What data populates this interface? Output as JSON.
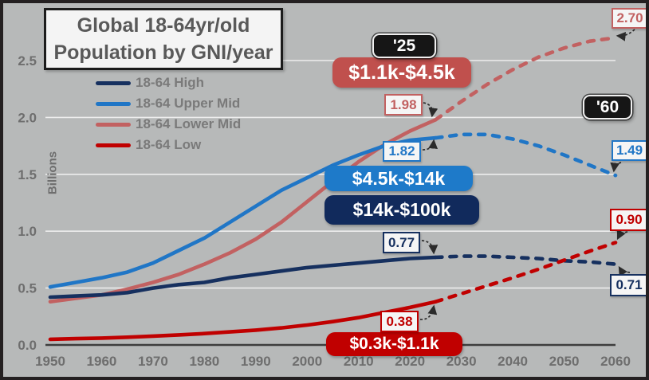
{
  "title": {
    "line1": "Global 18-64yr/old",
    "line2": "Population by GNI/year"
  },
  "y_axis_label": "Billions",
  "badges": {
    "forecast_start": "'25",
    "forecast_end": "'60"
  },
  "chart_data": {
    "type": "line",
    "x_years": [
      1950,
      1955,
      1960,
      1965,
      1970,
      1975,
      1980,
      1985,
      1990,
      1995,
      2000,
      2005,
      2010,
      2015,
      2020,
      2025,
      2030,
      2035,
      2040,
      2045,
      2050,
      2055,
      2060
    ],
    "xtick_labels": [
      "1950",
      "1960",
      "1970",
      "1980",
      "1990",
      "2000",
      "2010",
      "2020",
      "2030",
      "2040",
      "2050",
      "2060"
    ],
    "ytick_labels": [
      "0.0",
      "0.5",
      "1.0",
      "1.5",
      "2.0",
      "2.5"
    ],
    "yticks": [
      0.0,
      0.5,
      1.0,
      1.5,
      2.0,
      2.5
    ],
    "ylim": [
      0,
      2.8
    ],
    "ylabel": "Billions",
    "grid": "horizontal-white",
    "legend_position": "top-left",
    "solid_until_year": 2025,
    "background_color": "#b7b9b9",
    "series": [
      {
        "name": "18-64 High",
        "color": "#16305f",
        "badge_color": "#112a5c",
        "gni_range": "$14k-$100k",
        "label_2025": "0.77",
        "label_2060": "0.71",
        "values": [
          0.42,
          0.43,
          0.44,
          0.46,
          0.5,
          0.53,
          0.55,
          0.59,
          0.62,
          0.65,
          0.68,
          0.7,
          0.72,
          0.74,
          0.76,
          0.77,
          0.78,
          0.78,
          0.77,
          0.76,
          0.74,
          0.73,
          0.71
        ]
      },
      {
        "name": "18-64 Upper Mid",
        "color": "#2076c6",
        "badge_color": "#1e7ac9",
        "gni_range": "$4.5k-$14k",
        "label_2025": "1.82",
        "label_2060": "1.49",
        "values": [
          0.51,
          0.55,
          0.59,
          0.64,
          0.72,
          0.83,
          0.94,
          1.08,
          1.22,
          1.36,
          1.47,
          1.58,
          1.67,
          1.75,
          1.8,
          1.82,
          1.85,
          1.85,
          1.81,
          1.75,
          1.67,
          1.58,
          1.49
        ]
      },
      {
        "name": "18-64 Lower Mid",
        "color": "#c26161",
        "badge_color": "#c0504d",
        "gni_range": "$1.1k-$4.5k",
        "label_2025": "1.98",
        "label_2060": "2.70",
        "values": [
          0.38,
          0.41,
          0.44,
          0.49,
          0.55,
          0.62,
          0.71,
          0.81,
          0.93,
          1.08,
          1.26,
          1.44,
          1.61,
          1.76,
          1.88,
          1.98,
          2.14,
          2.29,
          2.42,
          2.53,
          2.61,
          2.67,
          2.7
        ]
      },
      {
        "name": "18-64 Low",
        "color": "#c00000",
        "badge_color": "#c00000",
        "gni_range": "$0.3k-$1.1k",
        "label_2025": "0.38",
        "label_2060": "0.90",
        "values": [
          0.05,
          0.055,
          0.06,
          0.068,
          0.078,
          0.088,
          0.1,
          0.115,
          0.13,
          0.15,
          0.175,
          0.205,
          0.24,
          0.285,
          0.33,
          0.38,
          0.45,
          0.52,
          0.59,
          0.665,
          0.745,
          0.825,
          0.9
        ]
      }
    ]
  }
}
